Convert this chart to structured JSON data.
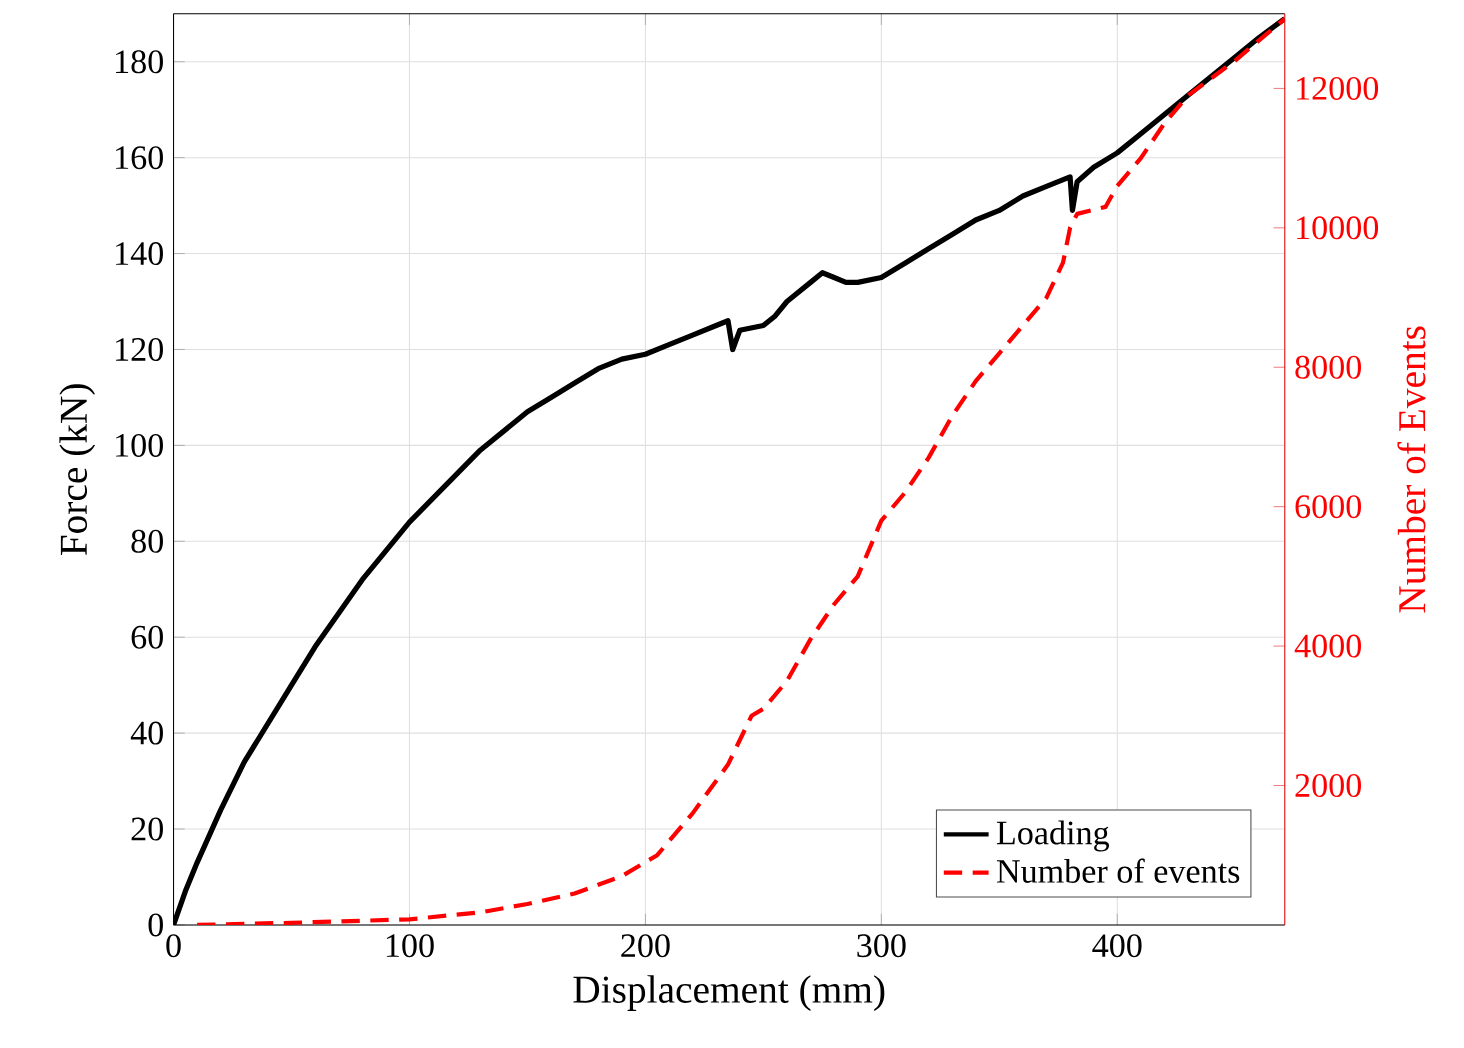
{
  "chart_data": {
    "type": "line",
    "xlabel": "Displacement (mm)",
    "ylabel": "Force (kN)",
    "y2label": "Number of Events",
    "xlim": [
      0,
      471
    ],
    "xticks": [
      0,
      100,
      200,
      300,
      400
    ],
    "ylim": [
      0,
      190
    ],
    "yticks": [
      0,
      20,
      40,
      60,
      80,
      100,
      120,
      140,
      160,
      180
    ],
    "y2lim": [
      0,
      13070
    ],
    "y2ticks": [
      2000,
      4000,
      6000,
      8000,
      10000,
      12000
    ],
    "grid": true,
    "legend": "bottom right",
    "series": [
      {
        "name": "Loading",
        "color": "#000000",
        "line_style": "solid",
        "x": [
          0,
          5,
          10,
          20,
          30,
          35,
          40,
          50,
          60,
          70,
          80,
          90,
          100,
          110,
          120,
          130,
          140,
          150,
          160,
          170,
          180,
          190,
          200,
          210,
          220,
          230,
          235,
          237,
          240,
          250,
          255,
          260,
          270,
          275,
          280,
          285,
          290,
          300,
          310,
          320,
          330,
          340,
          350,
          360,
          370,
          380,
          381,
          383,
          390,
          400,
          410,
          420,
          430,
          440,
          450,
          460,
          471
        ],
        "values": [
          0,
          7,
          13,
          24,
          34,
          38,
          42,
          50,
          58,
          65,
          72,
          78,
          84,
          89,
          94,
          99,
          103,
          107,
          110,
          113,
          116,
          118,
          119,
          121,
          123,
          125,
          126,
          120,
          124,
          125,
          127,
          130,
          134,
          136,
          135,
          134,
          134,
          135,
          138,
          141,
          144,
          147,
          149,
          152,
          154,
          156,
          149,
          155,
          158,
          161,
          165,
          169,
          173,
          177,
          181,
          185,
          189
        ]
      },
      {
        "name": "Number of events",
        "color": "#ff0000",
        "line_style": "dashed",
        "axis": "y2",
        "x": [
          10,
          50,
          100,
          130,
          150,
          170,
          190,
          205,
          220,
          235,
          245,
          250,
          260,
          270,
          280,
          290,
          300,
          310,
          320,
          330,
          340,
          350,
          360,
          370,
          377,
          380,
          383,
          395,
          400,
          410,
          420,
          430,
          450,
          471
        ],
        "values": [
          0,
          30,
          80,
          180,
          300,
          450,
          700,
          1000,
          1600,
          2300,
          3000,
          3100,
          3500,
          4100,
          4600,
          5000,
          5800,
          6200,
          6700,
          7300,
          7800,
          8200,
          8600,
          9000,
          9500,
          10000,
          10200,
          10300,
          10600,
          11000,
          11500,
          11900,
          12400,
          13000
        ]
      }
    ]
  }
}
